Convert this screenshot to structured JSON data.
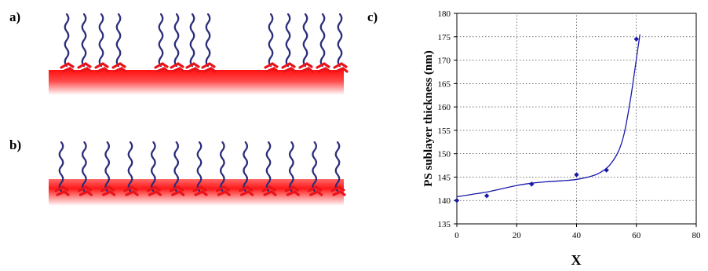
{
  "figure": {
    "panels": [
      {
        "id": "a",
        "label": "a)"
      },
      {
        "id": "b",
        "label": "b)"
      },
      {
        "id": "c",
        "label": "c)"
      }
    ],
    "colors": {
      "chain": "#2b2d7a",
      "anchor": "#e8141a",
      "substrate": "#ff2020",
      "data": "#1a1aaa"
    },
    "brush_a_groups": [
      4,
      4,
      5
    ],
    "brush_b_count": 13
  },
  "chart_data": {
    "type": "scatter",
    "title": "",
    "xlabel": "X",
    "ylabel": "PS sublayer thickness (nm)",
    "xlim": [
      0,
      80
    ],
    "ylim": [
      135,
      180
    ],
    "xticks": [
      "0",
      "20",
      "40",
      "60",
      "80"
    ],
    "yticks": [
      "135",
      "140",
      "145",
      "150",
      "155",
      "160",
      "165",
      "170",
      "175",
      "180"
    ],
    "grid": "dotted",
    "series": [
      {
        "x": [
          0,
          10,
          25,
          40,
          50,
          60
        ],
        "y": [
          140,
          141,
          143.5,
          145.5,
          146.5,
          174.5
        ]
      }
    ],
    "fit_line": {
      "x": [
        0,
        5,
        10,
        15,
        20,
        25,
        30,
        35,
        40,
        45,
        48,
        51,
        54,
        56,
        58,
        59.5,
        60.5,
        61.2
      ],
      "y": [
        140.8,
        141.3,
        141.8,
        142.5,
        143.2,
        143.7,
        144.0,
        144.2,
        144.5,
        145.2,
        146.0,
        147.5,
        150.5,
        154.5,
        161.5,
        168.0,
        172.5,
        175.5
      ]
    }
  }
}
